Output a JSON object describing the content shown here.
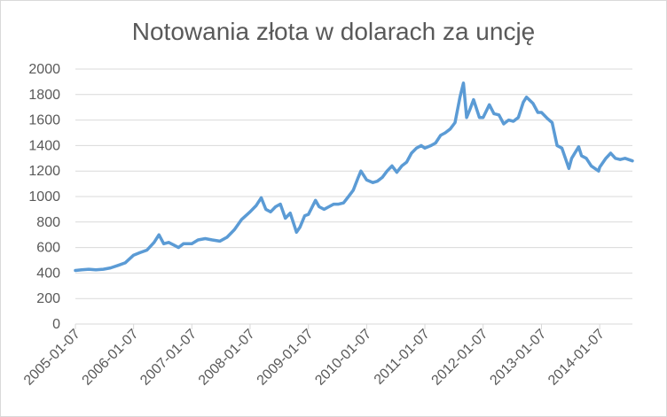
{
  "chart_data": {
    "type": "line",
    "title": "Notowania złota w dolarach za uncję",
    "xlabel": "",
    "ylabel": "",
    "ylim": [
      0,
      2000
    ],
    "yticks": [
      "0",
      "200",
      "400",
      "600",
      "800",
      "1000",
      "1200",
      "1400",
      "1600",
      "1800",
      "2000"
    ],
    "xticks": [
      "2005-01-07",
      "2006-01-07",
      "2007-01-07",
      "2008-01-07",
      "2009-01-07",
      "2010-01-07",
      "2011-01-07",
      "2012-01-07",
      "2013-01-07",
      "2014-01-07"
    ],
    "x_start": "2005-01-07",
    "x_end": "2014-07-31",
    "grid": true,
    "legend": "none",
    "line_color": "#5b9bd5",
    "series": [
      {
        "x": [
          "2005-01-07",
          "2005-02-15",
          "2005-04-01",
          "2005-05-15",
          "2005-07-01",
          "2005-08-15",
          "2005-10-01",
          "2005-11-15",
          "2006-01-07",
          "2006-02-15",
          "2006-04-01",
          "2006-05-15",
          "2006-06-15",
          "2006-07-15",
          "2006-08-15",
          "2006-09-15",
          "2006-10-15",
          "2006-11-15",
          "2007-01-07",
          "2007-02-15",
          "2007-04-01",
          "2007-05-15",
          "2007-07-01",
          "2007-08-15",
          "2007-10-01",
          "2007-11-15",
          "2008-01-07",
          "2008-02-15",
          "2008-03-17",
          "2008-04-15",
          "2008-05-15",
          "2008-06-15",
          "2008-07-15",
          "2008-08-15",
          "2008-09-15",
          "2008-10-24",
          "2008-11-15",
          "2008-12-15",
          "2009-01-07",
          "2009-02-20",
          "2009-03-15",
          "2009-04-15",
          "2009-05-15",
          "2009-06-15",
          "2009-07-15",
          "2009-08-15",
          "2009-09-15",
          "2009-10-15",
          "2009-11-15",
          "2009-12-02",
          "2010-01-07",
          "2010-02-15",
          "2010-03-15",
          "2010-04-15",
          "2010-05-15",
          "2010-06-15",
          "2010-07-15",
          "2010-08-15",
          "2010-09-15",
          "2010-10-15",
          "2010-11-15",
          "2010-12-15",
          "2011-01-07",
          "2011-02-15",
          "2011-03-15",
          "2011-04-15",
          "2011-05-15",
          "2011-06-15",
          "2011-07-15",
          "2011-08-15",
          "2011-09-06",
          "2011-09-26",
          "2011-10-15",
          "2011-11-08",
          "2011-12-15",
          "2012-01-07",
          "2012-02-15",
          "2012-03-15",
          "2012-04-15",
          "2012-05-15",
          "2012-06-15",
          "2012-07-15",
          "2012-08-15",
          "2012-09-15",
          "2012-10-05",
          "2012-11-15",
          "2012-12-15",
          "2013-01-07",
          "2013-02-15",
          "2013-03-15",
          "2013-04-15",
          "2013-05-15",
          "2013-06-28",
          "2013-07-15",
          "2013-08-28",
          "2013-09-15",
          "2013-10-15",
          "2013-11-15",
          "2013-12-31",
          "2014-01-07",
          "2014-02-15",
          "2014-03-17",
          "2014-04-15",
          "2014-05-15",
          "2014-06-15",
          "2014-07-31"
        ],
        "y": [
          420,
          425,
          430,
          425,
          430,
          440,
          460,
          480,
          540,
          560,
          580,
          640,
          700,
          630,
          640,
          620,
          600,
          630,
          630,
          660,
          670,
          660,
          650,
          680,
          740,
          820,
          880,
          930,
          990,
          900,
          880,
          920,
          940,
          830,
          870,
          720,
          760,
          850,
          860,
          970,
          920,
          900,
          920,
          940,
          940,
          950,
          1000,
          1050,
          1150,
          1200,
          1130,
          1110,
          1120,
          1150,
          1200,
          1240,
          1190,
          1240,
          1270,
          1340,
          1380,
          1400,
          1380,
          1400,
          1420,
          1480,
          1500,
          1530,
          1580,
          1780,
          1890,
          1620,
          1680,
          1760,
          1620,
          1620,
          1720,
          1650,
          1640,
          1570,
          1600,
          1590,
          1620,
          1740,
          1780,
          1730,
          1660,
          1660,
          1610,
          1580,
          1400,
          1380,
          1220,
          1300,
          1390,
          1320,
          1300,
          1240,
          1200,
          1230,
          1300,
          1340,
          1300,
          1290,
          1300,
          1280
        ]
      }
    ]
  }
}
